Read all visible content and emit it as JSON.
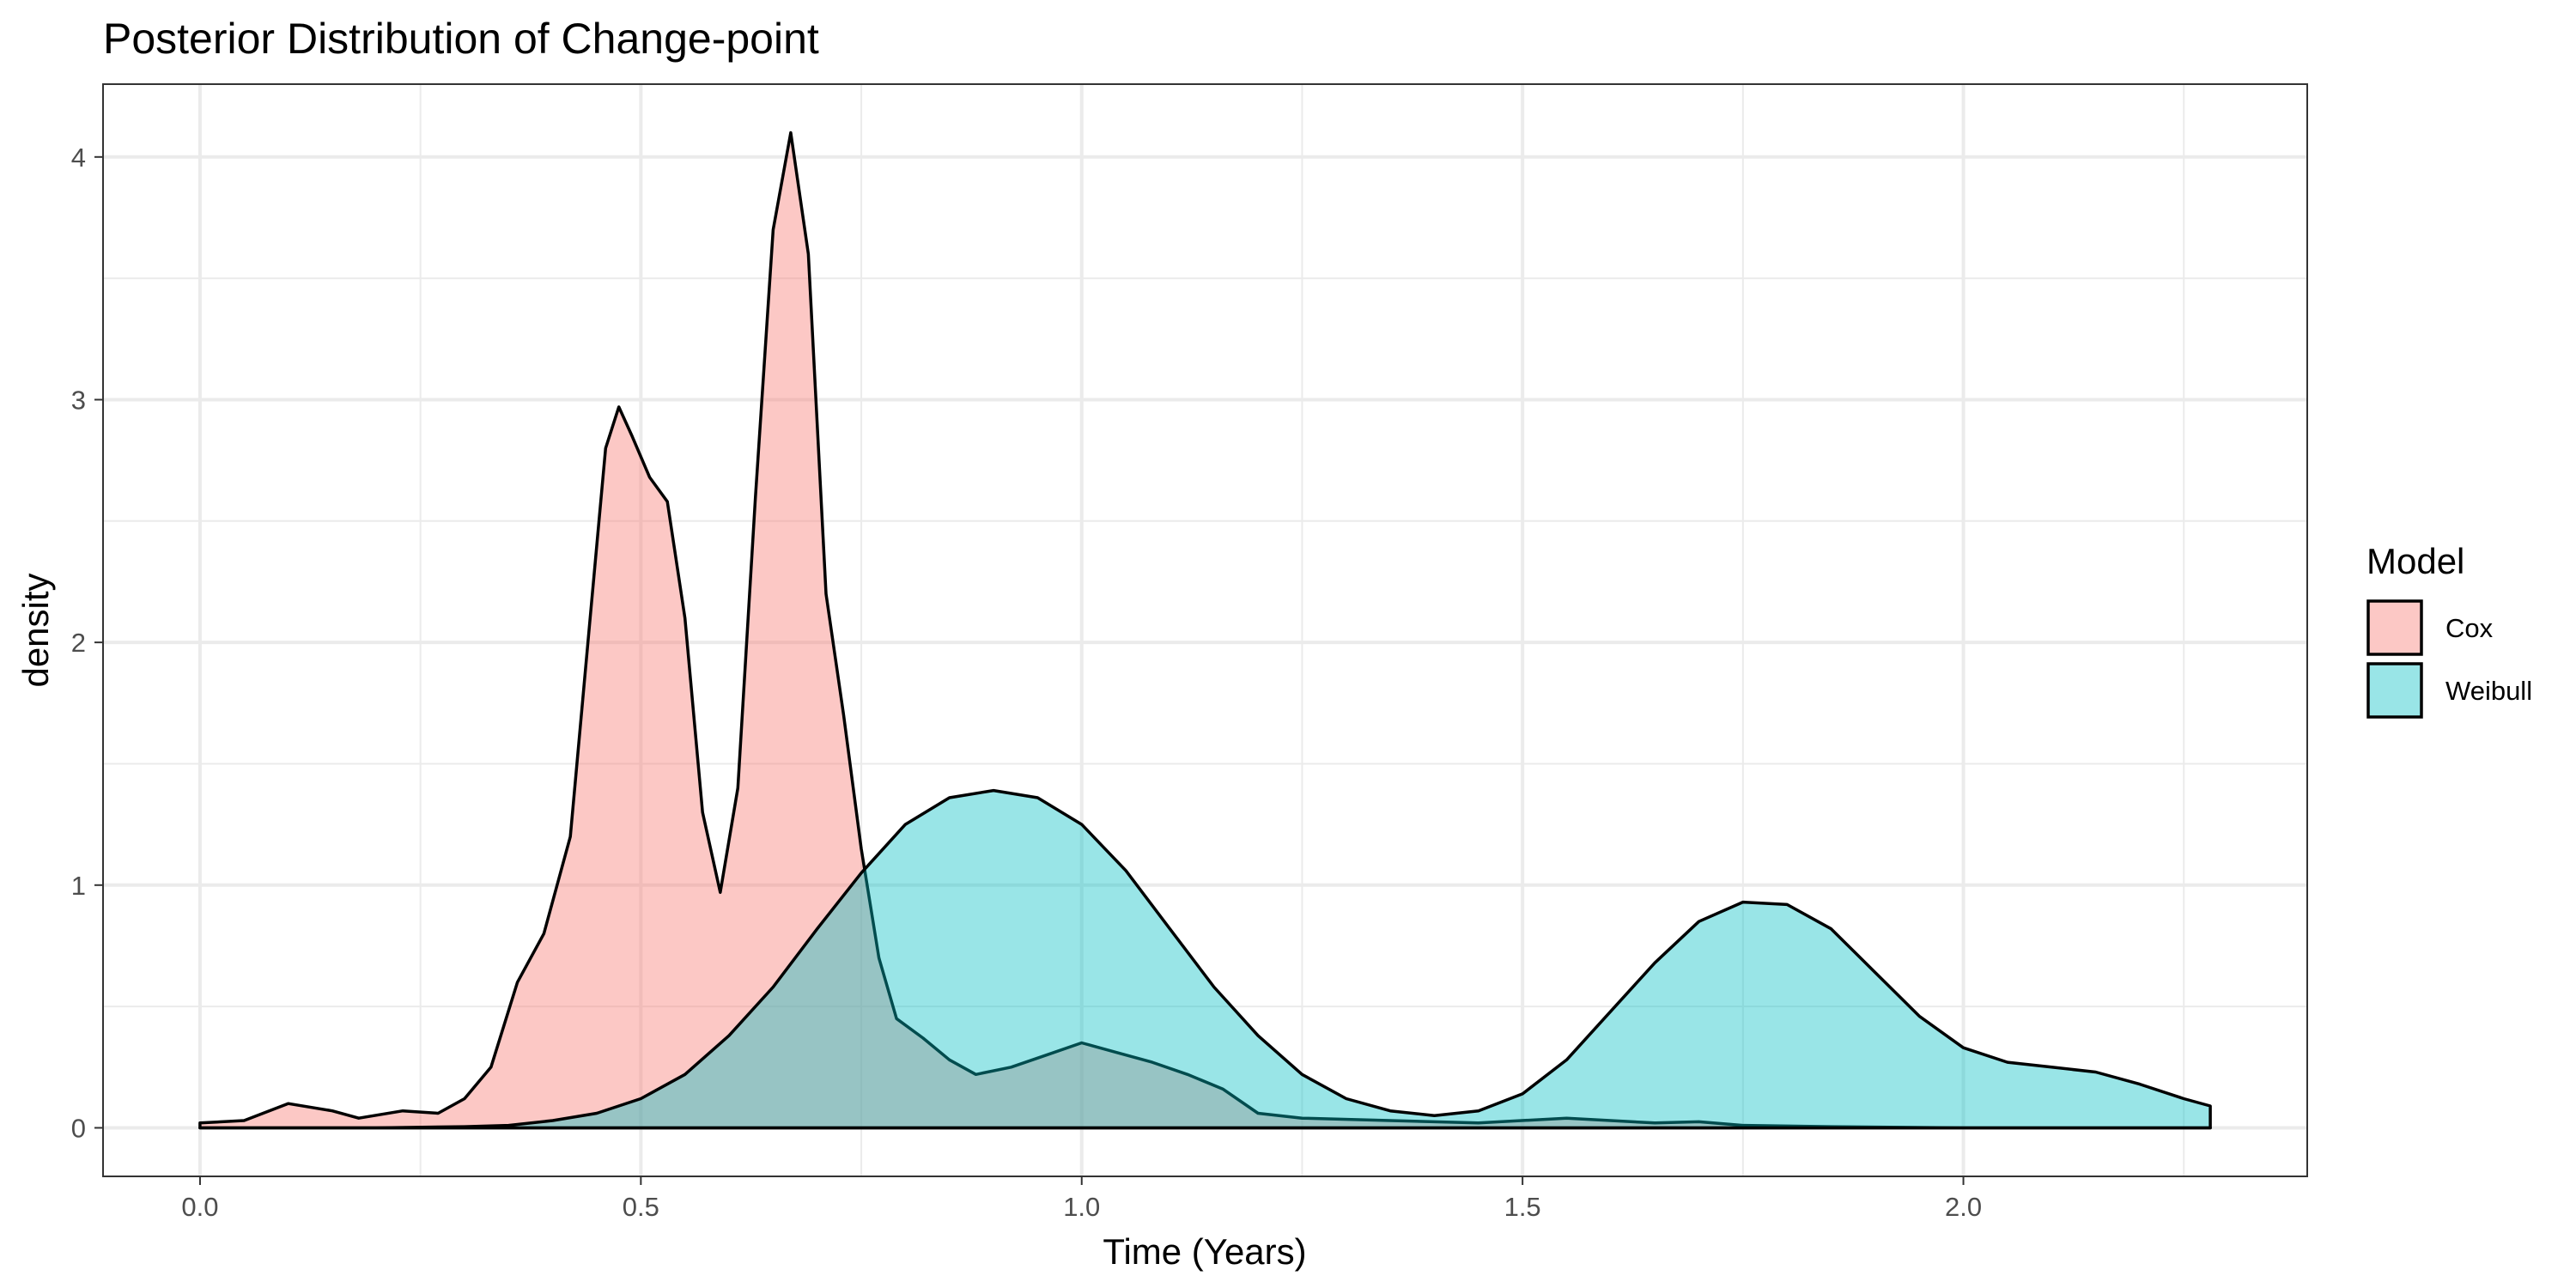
{
  "chart_data": {
    "type": "area",
    "title": "Posterior Distribution of Change-point",
    "xlabel": "Time (Years)",
    "ylabel": "density",
    "xlim": [
      -0.11,
      2.39
    ],
    "ylim": [
      -0.2,
      4.3
    ],
    "x_ticks": [
      0.0,
      0.5,
      1.0,
      1.5,
      2.0
    ],
    "x_tick_labels": [
      "0.0",
      "0.5",
      "1.0",
      "1.5",
      "2.0"
    ],
    "y_ticks": [
      0,
      1,
      2,
      3,
      4
    ],
    "y_tick_labels": [
      "0",
      "1",
      "2",
      "3",
      "4"
    ],
    "grid": true,
    "legend": {
      "title": "Model",
      "position": "right",
      "entries": [
        {
          "label": "Cox",
          "color": "#F8766D"
        },
        {
          "label": "Weibull",
          "color": "#00BFC4"
        }
      ]
    },
    "series": [
      {
        "name": "Cox",
        "color": "#F8766D",
        "points": [
          [
            0.0,
            0.02
          ],
          [
            0.05,
            0.03
          ],
          [
            0.1,
            0.1
          ],
          [
            0.15,
            0.07
          ],
          [
            0.18,
            0.04
          ],
          [
            0.23,
            0.07
          ],
          [
            0.27,
            0.06
          ],
          [
            0.3,
            0.12
          ],
          [
            0.33,
            0.25
          ],
          [
            0.36,
            0.6
          ],
          [
            0.39,
            0.8
          ],
          [
            0.42,
            1.2
          ],
          [
            0.44,
            2.0
          ],
          [
            0.46,
            2.8
          ],
          [
            0.475,
            2.97
          ],
          [
            0.49,
            2.85
          ],
          [
            0.51,
            2.68
          ],
          [
            0.53,
            2.58
          ],
          [
            0.55,
            2.1
          ],
          [
            0.57,
            1.3
          ],
          [
            0.59,
            0.97
          ],
          [
            0.61,
            1.4
          ],
          [
            0.63,
            2.6
          ],
          [
            0.65,
            3.7
          ],
          [
            0.67,
            4.1
          ],
          [
            0.69,
            3.6
          ],
          [
            0.71,
            2.2
          ],
          [
            0.73,
            1.7
          ],
          [
            0.75,
            1.15
          ],
          [
            0.77,
            0.7
          ],
          [
            0.79,
            0.45
          ],
          [
            0.82,
            0.37
          ],
          [
            0.85,
            0.28
          ],
          [
            0.88,
            0.22
          ],
          [
            0.92,
            0.25
          ],
          [
            0.96,
            0.3
          ],
          [
            1.0,
            0.35
          ],
          [
            1.04,
            0.31
          ],
          [
            1.08,
            0.27
          ],
          [
            1.12,
            0.22
          ],
          [
            1.16,
            0.16
          ],
          [
            1.2,
            0.06
          ],
          [
            1.25,
            0.04
          ],
          [
            1.35,
            0.03
          ],
          [
            1.45,
            0.02
          ],
          [
            1.55,
            0.04
          ],
          [
            1.65,
            0.02
          ],
          [
            1.7,
            0.025
          ],
          [
            1.75,
            0.01
          ],
          [
            1.85,
            0.005
          ],
          [
            2.0,
            0.0
          ],
          [
            2.28,
            0.0
          ]
        ]
      },
      {
        "name": "Weibull",
        "color": "#00BFC4",
        "points": [
          [
            0.0,
            0.0
          ],
          [
            0.2,
            0.0
          ],
          [
            0.3,
            0.005
          ],
          [
            0.35,
            0.01
          ],
          [
            0.4,
            0.03
          ],
          [
            0.45,
            0.06
          ],
          [
            0.5,
            0.12
          ],
          [
            0.55,
            0.22
          ],
          [
            0.6,
            0.38
          ],
          [
            0.65,
            0.58
          ],
          [
            0.7,
            0.82
          ],
          [
            0.75,
            1.05
          ],
          [
            0.8,
            1.25
          ],
          [
            0.85,
            1.36
          ],
          [
            0.9,
            1.39
          ],
          [
            0.95,
            1.36
          ],
          [
            1.0,
            1.25
          ],
          [
            1.05,
            1.06
          ],
          [
            1.1,
            0.82
          ],
          [
            1.15,
            0.58
          ],
          [
            1.2,
            0.38
          ],
          [
            1.25,
            0.22
          ],
          [
            1.3,
            0.12
          ],
          [
            1.35,
            0.07
          ],
          [
            1.4,
            0.05
          ],
          [
            1.45,
            0.07
          ],
          [
            1.5,
            0.14
          ],
          [
            1.55,
            0.28
          ],
          [
            1.6,
            0.48
          ],
          [
            1.65,
            0.68
          ],
          [
            1.7,
            0.85
          ],
          [
            1.75,
            0.93
          ],
          [
            1.8,
            0.92
          ],
          [
            1.85,
            0.82
          ],
          [
            1.9,
            0.64
          ],
          [
            1.95,
            0.46
          ],
          [
            2.0,
            0.33
          ],
          [
            2.05,
            0.27
          ],
          [
            2.1,
            0.25
          ],
          [
            2.15,
            0.23
          ],
          [
            2.2,
            0.18
          ],
          [
            2.25,
            0.12
          ],
          [
            2.28,
            0.09
          ]
        ]
      }
    ]
  }
}
